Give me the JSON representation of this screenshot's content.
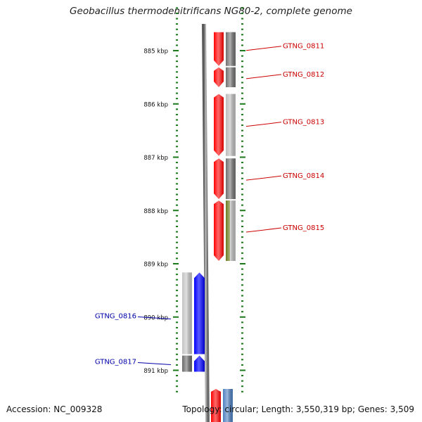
{
  "title": "Geobacillus thermodenitrificans NG80-2, complete genome",
  "footer": {
    "accession": "Accession: NC_009328",
    "genome_info": "Topology: circular; Length: 3,550,319 bp; Genes: 3,509"
  },
  "axis": {
    "unit": "kbp",
    "ticks": [
      {
        "kbp": 885,
        "label": "885 kbp"
      },
      {
        "kbp": 886,
        "label": "886 kbp"
      },
      {
        "kbp": 887,
        "label": "887 kbp"
      },
      {
        "kbp": 888,
        "label": "888 kbp"
      },
      {
        "kbp": 889,
        "label": "889 kbp"
      },
      {
        "kbp": 890,
        "label": "890 kbp"
      },
      {
        "kbp": 891,
        "label": "891 kbp"
      }
    ]
  },
  "genes": [
    {
      "id": "GTNG_0811",
      "label": "GTNG_0811",
      "strand": "forward",
      "start_kbp": 884.64,
      "end_kbp": 885.3,
      "status_color": "#707070"
    },
    {
      "id": "GTNG_0812",
      "label": "GTNG_0812",
      "strand": "forward",
      "start_kbp": 885.3,
      "end_kbp": 885.7,
      "status_color": "#707070"
    },
    {
      "id": "GTNG_0813",
      "label": "GTNG_0813",
      "strand": "forward",
      "start_kbp": 885.8,
      "end_kbp": 886.99,
      "status_color": "#bcbcbc"
    },
    {
      "id": "GTNG_0814",
      "label": "GTNG_0814",
      "strand": "forward",
      "start_kbp": 887.01,
      "end_kbp": 887.8,
      "status_color": "#707070"
    },
    {
      "id": "GTNG_0815",
      "label": "GTNG_0815",
      "strand": "forward",
      "start_kbp": 887.8,
      "end_kbp": 888.96,
      "status_color": "#bcbcbc",
      "status_color_2": "#6b7d1f"
    },
    {
      "id": "GTNG_0816",
      "label": "GTNG_0816",
      "strand": "reverse",
      "start_kbp": 889.15,
      "end_kbp": 890.71,
      "status_color": "#c4c4c4"
    },
    {
      "id": "GTNG_0817",
      "label": "GTNG_0817",
      "strand": "reverse",
      "start_kbp": 890.71,
      "end_kbp": 891.04,
      "status_color": "#6a6a6a"
    }
  ],
  "partial_genes": [
    {
      "strand": "forward",
      "start_kbp": 891.35,
      "status_color": "#4d7fbf"
    }
  ],
  "colors": {
    "forward": "#ff0000",
    "reverse": "#0000ff",
    "forward_label": "#cc0000",
    "reverse_label": "#0000aa",
    "tick": "#1a7a1a",
    "backbone": "#808080"
  }
}
